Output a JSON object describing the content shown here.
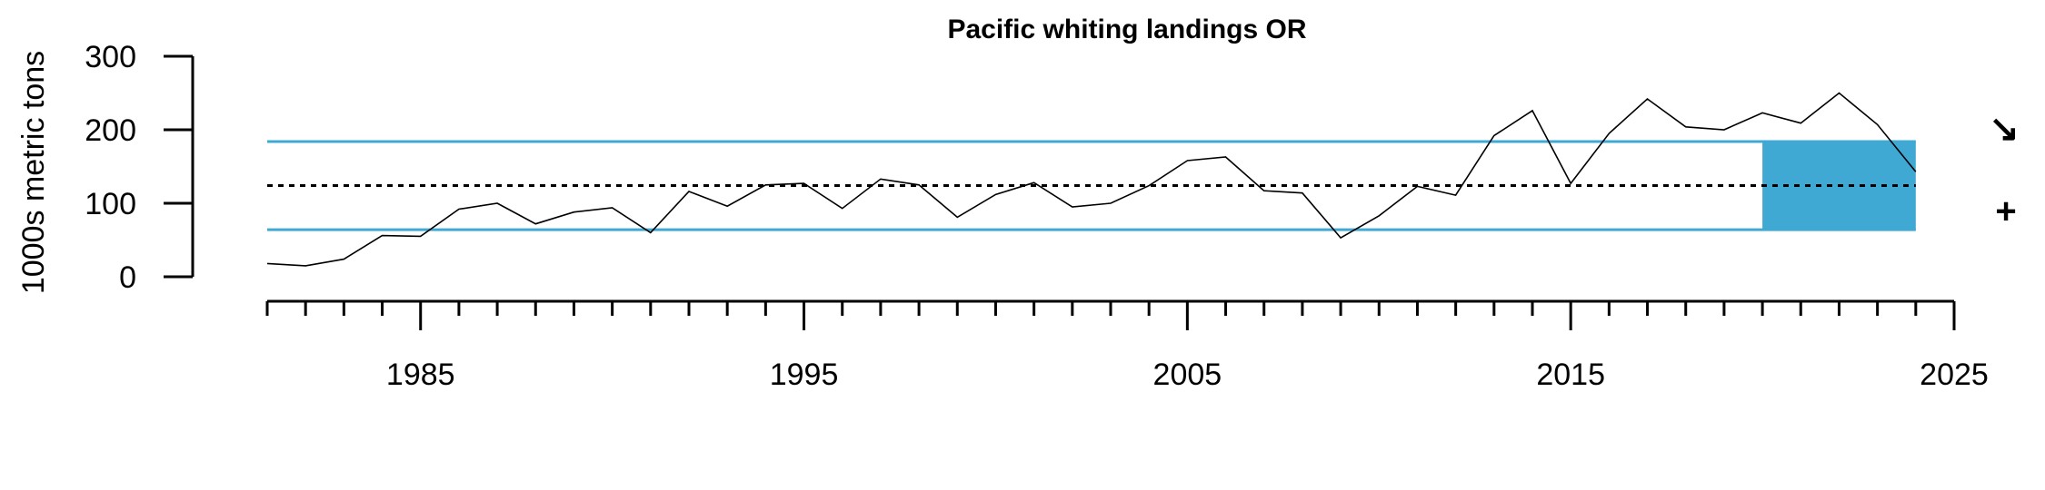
{
  "chart_data": {
    "type": "line",
    "title": "Pacific whiting landings OR",
    "ylabel": "1000s metric tons",
    "xlabel": "",
    "ylim": [
      0,
      300
    ],
    "xlim": [
      1981,
      2025
    ],
    "y_ticks": [
      0,
      100,
      200,
      300
    ],
    "x_major_ticks": [
      1985,
      1995,
      2005,
      2015,
      2025
    ],
    "x_minor_ticks": [
      1981,
      1982,
      1983,
      1984,
      1985,
      1986,
      1987,
      1988,
      1989,
      1990,
      1991,
      1992,
      1993,
      1994,
      1995,
      1996,
      1997,
      1998,
      1999,
      2000,
      2001,
      2002,
      2003,
      2004,
      2005,
      2006,
      2007,
      2008,
      2009,
      2010,
      2011,
      2012,
      2013,
      2014,
      2015,
      2016,
      2017,
      2018,
      2019,
      2020,
      2021,
      2022,
      2023,
      2024,
      2025
    ],
    "series": [
      {
        "x": [
          1981,
          1982,
          1983,
          1984,
          1985,
          1986,
          1987,
          1988,
          1989,
          1990,
          1991,
          1992,
          1993,
          1994,
          1995,
          1996,
          1997,
          1998,
          1999,
          2000,
          2001,
          2002,
          2003,
          2004,
          2005,
          2006,
          2007,
          2008,
          2009,
          2010,
          2011,
          2012,
          2013,
          2014,
          2015,
          2016,
          2017,
          2018,
          2019,
          2020,
          2021,
          2022,
          2023,
          2024
        ],
        "values": [
          18,
          15,
          24,
          56,
          55,
          92,
          100,
          72,
          88,
          94,
          60,
          116,
          96,
          125,
          127,
          93,
          133,
          125,
          81,
          112,
          128,
          95,
          100,
          124,
          158,
          163,
          117,
          114,
          53,
          83,
          123,
          111,
          192,
          226,
          127,
          195,
          242,
          204,
          200,
          223,
          209,
          250,
          207,
          143
        ],
        "color": "#000000"
      }
    ],
    "mean": 124,
    "sd_band": [
      64,
      184
    ],
    "band_color": "#3fa9d4",
    "highlight_window": [
      2020,
      2024
    ],
    "trend_symbol": "↘",
    "mean_symbol": "+"
  }
}
